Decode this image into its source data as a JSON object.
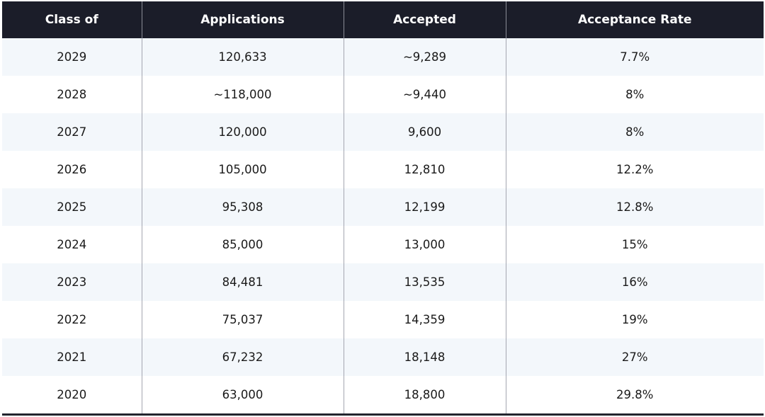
{
  "table": {
    "columns": [
      "Class of",
      "Applications",
      "Accepted",
      "Acceptance Rate"
    ],
    "rows": [
      [
        "2029",
        "120,633",
        "~9,289",
        "7.7%"
      ],
      [
        "2028",
        "~118,000",
        "~9,440",
        "8%"
      ],
      [
        "2027",
        "120,000",
        "9,600",
        "8%"
      ],
      [
        "2026",
        "105,000",
        "12,810",
        "12.2%"
      ],
      [
        "2025",
        "95,308",
        "12,199",
        "12.8%"
      ],
      [
        "2024",
        "85,000",
        "13,000",
        "15%"
      ],
      [
        "2023",
        "84,481",
        "13,535",
        "16%"
      ],
      [
        "2022",
        "75,037",
        "14,359",
        "19%"
      ],
      [
        "2021",
        "67,232",
        "18,148",
        "27%"
      ],
      [
        "2020",
        "63,000",
        "18,800",
        "29.8%"
      ]
    ]
  }
}
